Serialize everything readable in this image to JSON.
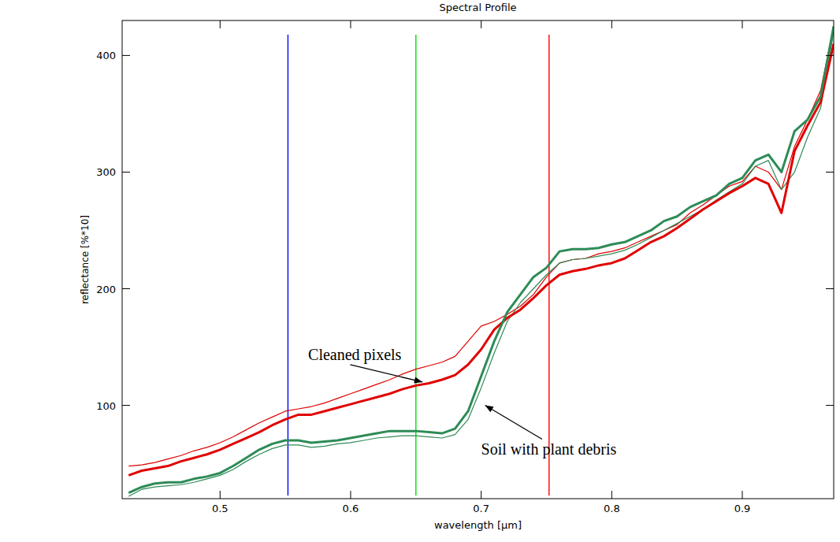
{
  "chart_data": {
    "type": "line",
    "title": "Spectral Profile",
    "x_label": "wavelength [µm]",
    "y_label": "reflectance [%*10]",
    "x": [
      0.43,
      0.44,
      0.45,
      0.46,
      0.47,
      0.48,
      0.49,
      0.5,
      0.51,
      0.52,
      0.53,
      0.54,
      0.55,
      0.56,
      0.57,
      0.58,
      0.59,
      0.6,
      0.61,
      0.62,
      0.63,
      0.64,
      0.65,
      0.66,
      0.67,
      0.68,
      0.69,
      0.7,
      0.71,
      0.72,
      0.73,
      0.74,
      0.75,
      0.76,
      0.77,
      0.78,
      0.79,
      0.8,
      0.81,
      0.82,
      0.83,
      0.84,
      0.85,
      0.86,
      0.87,
      0.88,
      0.89,
      0.9,
      0.91,
      0.92,
      0.93,
      0.94,
      0.95,
      0.96,
      0.97
    ],
    "series": [
      {
        "color": "#e00000",
        "line_style": "thin",
        "values": [
          48,
          49,
          51,
          54,
          57,
          61,
          64,
          68,
          73,
          79,
          85,
          90,
          95,
          97,
          99,
          102,
          106,
          110,
          114,
          118,
          122,
          127,
          131,
          134,
          137,
          142,
          155,
          168,
          172,
          178,
          185,
          195,
          210,
          222,
          225,
          226,
          230,
          232,
          235,
          240,
          245,
          250,
          255,
          265,
          272,
          280,
          288,
          292,
          305,
          300,
          285,
          322,
          345,
          370,
          425
        ]
      },
      {
        "color": "#2e8b57",
        "line_style": "thin",
        "values": [
          22,
          28,
          30,
          31,
          32,
          34,
          37,
          40,
          45,
          52,
          58,
          63,
          66,
          66,
          64,
          65,
          67,
          68,
          70,
          72,
          73,
          74,
          74,
          73,
          72,
          75,
          88,
          115,
          145,
          172,
          188,
          200,
          212,
          222,
          225,
          226,
          228,
          230,
          233,
          238,
          244,
          250,
          256,
          262,
          268,
          276,
          283,
          290,
          305,
          310,
          285,
          300,
          330,
          355,
          420
        ]
      },
      {
        "color": "#e00000",
        "line_style": "thick",
        "values": [
          40,
          44,
          46,
          48,
          52,
          55,
          58,
          62,
          67,
          72,
          77,
          83,
          88,
          92,
          92,
          95,
          98,
          101,
          104,
          107,
          110,
          114,
          117,
          119,
          122,
          126,
          135,
          148,
          165,
          175,
          182,
          192,
          203,
          212,
          215,
          217,
          220,
          222,
          226,
          233,
          240,
          245,
          252,
          260,
          268,
          275,
          282,
          288,
          295,
          290,
          265,
          318,
          340,
          360,
          410
        ]
      },
      {
        "color": "#2e8b57",
        "line_style": "thick",
        "values": [
          25,
          30,
          33,
          34,
          34,
          37,
          39,
          42,
          48,
          55,
          62,
          67,
          70,
          70,
          68,
          69,
          70,
          72,
          74,
          76,
          78,
          78,
          78,
          77,
          76,
          80,
          95,
          125,
          155,
          180,
          195,
          210,
          218,
          232,
          234,
          234,
          235,
          238,
          240,
          245,
          250,
          258,
          262,
          270,
          275,
          280,
          290,
          295,
          310,
          315,
          300,
          335,
          345,
          365,
          425
        ]
      }
    ],
    "vlines": [
      {
        "x": 0.552,
        "color": "#0000ff"
      },
      {
        "x": 0.65,
        "color": "#00dd00"
      },
      {
        "x": 0.752,
        "color": "#ff0000"
      }
    ],
    "annotations": [
      {
        "text": "Cleaned pixels",
        "x": 0.655,
        "y": 120
      },
      {
        "text": "Soil with plant debris",
        "x": 0.703,
        "y": 100
      }
    ],
    "xlim": [
      0.425,
      0.97
    ],
    "ylim": [
      20,
      430
    ],
    "xticks": [
      0.5,
      0.6,
      0.7,
      0.8,
      0.9
    ],
    "yticks": [
      100,
      200,
      300,
      400
    ],
    "grid": false
  }
}
